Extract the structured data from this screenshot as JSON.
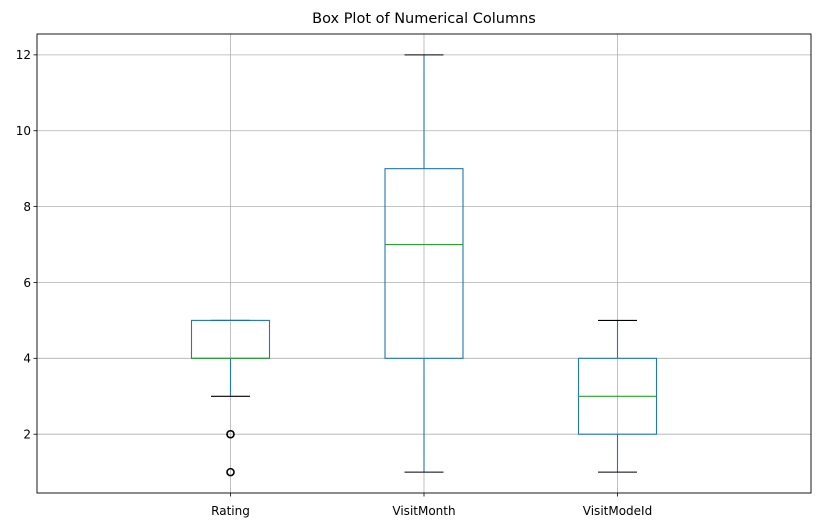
{
  "chart_data": {
    "type": "box",
    "title": "Box Plot of Numerical Columns",
    "xlabel": "",
    "ylabel": "",
    "ylim": [
      0.45,
      12.55
    ],
    "yticks": [
      2,
      4,
      6,
      8,
      10,
      12
    ],
    "grid": true,
    "categories": [
      "Rating",
      "VisitMonth",
      "VisitModeId"
    ],
    "boxes": [
      {
        "category": "Rating",
        "whisker_low": 3,
        "q1": 4,
        "median": 4,
        "q3": 5,
        "whisker_high": 5,
        "outliers": [
          2,
          1
        ]
      },
      {
        "category": "VisitMonth",
        "whisker_low": 1,
        "q1": 4,
        "median": 7,
        "q3": 9,
        "whisker_high": 12,
        "outliers": []
      },
      {
        "category": "VisitModeId",
        "whisker_low": 1,
        "q1": 2,
        "median": 3,
        "q3": 4,
        "whisker_high": 5,
        "outliers": []
      }
    ],
    "colors": {
      "box": "#1f77b4",
      "median": "#2ca02c",
      "whisker_cap": "#000000",
      "grid": "#b0b0b0",
      "outlier": "#000000"
    }
  }
}
